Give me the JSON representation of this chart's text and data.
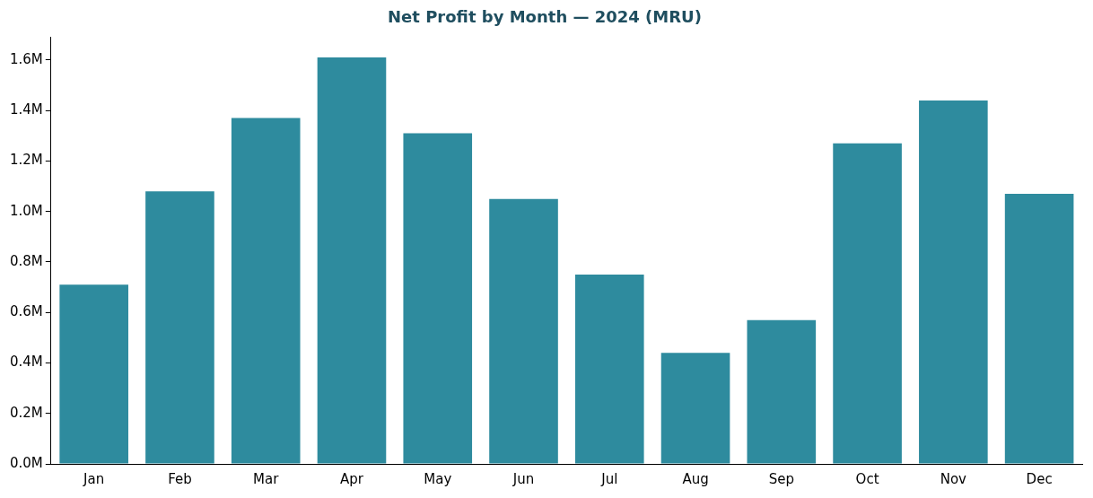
{
  "chart_data": {
    "type": "bar",
    "title": "Net Profit by Month — 2024 (MRU)",
    "categories": [
      "Jan",
      "Feb",
      "Mar",
      "Apr",
      "May",
      "Jun",
      "Jul",
      "Aug",
      "Sep",
      "Oct",
      "Nov",
      "Dec"
    ],
    "values": [
      710000,
      1080000,
      1370000,
      1610000,
      1310000,
      1050000,
      750000,
      440000,
      570000,
      1270000,
      1440000,
      1070000
    ],
    "color": "#2e8b9e",
    "ylim": [
      0,
      1690000
    ],
    "yticks": [
      {
        "value": 0,
        "label": "0.0M"
      },
      {
        "value": 200000,
        "label": "0.2M"
      },
      {
        "value": 400000,
        "label": "0.4M"
      },
      {
        "value": 600000,
        "label": "0.6M"
      },
      {
        "value": 800000,
        "label": "0.8M"
      },
      {
        "value": 1000000,
        "label": "1.0M"
      },
      {
        "value": 1200000,
        "label": "1.2M"
      },
      {
        "value": 1400000,
        "label": "1.4M"
      },
      {
        "value": 1600000,
        "label": "1.6M"
      }
    ],
    "grid": false
  }
}
